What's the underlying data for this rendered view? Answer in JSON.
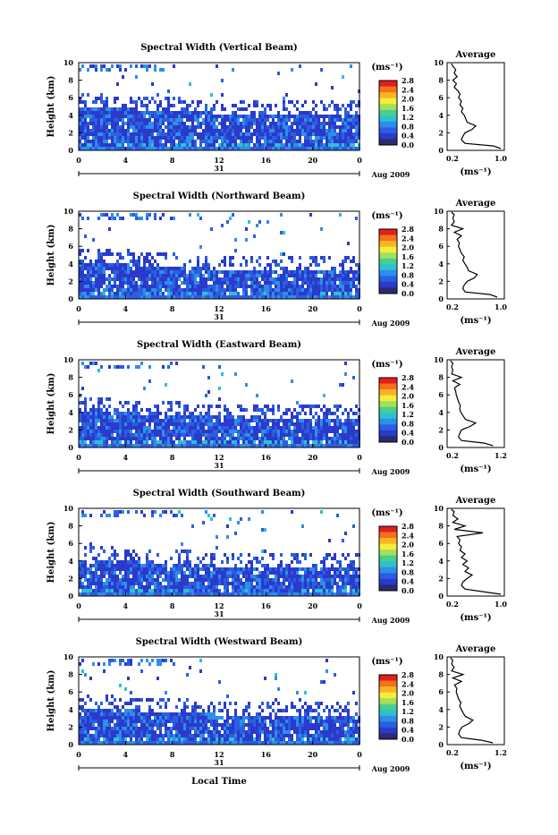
{
  "colorbar": {
    "unit": "(ms⁻¹)",
    "ticks": [
      "2.8",
      "2.4",
      "2.0",
      "1.6",
      "1.2",
      "0.8",
      "0.4",
      "0.0"
    ],
    "colors": [
      "#e41e1e",
      "#f5711a",
      "#fbb326",
      "#f4ee3a",
      "#a4e05a",
      "#46d08c",
      "#2fc0d0",
      "#2e8ee8",
      "#2b5ee0",
      "#2a3acb",
      "#2b2b6e"
    ]
  },
  "shared": {
    "x_ticks": [
      "0",
      "4",
      "8",
      "12",
      "16",
      "20",
      "0"
    ],
    "day_label": "31",
    "date_label": "Aug 2009",
    "y_ticks": [
      "0",
      "2",
      "4",
      "6",
      "8",
      "10"
    ],
    "ylabel": "Height (km)",
    "xlabel": "Local Time",
    "avg_title": "Average",
    "avg_unit": "(ms⁻¹)"
  },
  "chart_data": [
    {
      "type": "heatmap",
      "title": "Spectral Width (Vertical Beam)",
      "x_range": [
        0,
        24
      ],
      "y_range": [
        0,
        10
      ],
      "xlabel": "",
      "ylabel": "Height (km)",
      "profile": {
        "title": "Average",
        "x_ticks": [
          "0.2",
          "1.0"
        ],
        "xlim": [
          0.2,
          1.0
        ],
        "ylim": [
          0,
          10
        ],
        "heights": [
          0.2,
          0.5,
          0.8,
          1.2,
          1.6,
          2.0,
          2.4,
          2.8,
          3.2,
          3.6,
          4.0,
          4.4,
          4.8,
          5.2,
          5.6,
          6.0,
          6.4,
          6.8,
          7.2,
          7.6,
          8.0,
          8.4,
          8.8,
          9.2,
          9.6,
          9.9
        ],
        "values": [
          0.95,
          0.85,
          0.45,
          0.4,
          0.42,
          0.45,
          0.55,
          0.6,
          0.48,
          0.46,
          0.44,
          0.4,
          0.42,
          0.38,
          0.4,
          0.36,
          0.38,
          0.35,
          0.3,
          0.33,
          0.28,
          0.34,
          0.3,
          0.32,
          0.28,
          0.26
        ]
      }
    },
    {
      "type": "heatmap",
      "title": "Spectral Width (Northward Beam)",
      "x_range": [
        0,
        24
      ],
      "y_range": [
        0,
        10
      ],
      "xlabel": "",
      "ylabel": "Height (km)",
      "profile": {
        "title": "Average",
        "x_ticks": [
          "0.2",
          "1.0"
        ],
        "xlim": [
          0.2,
          1.0
        ],
        "ylim": [
          0,
          10
        ],
        "heights": [
          0.2,
          0.5,
          0.8,
          1.2,
          1.6,
          2.0,
          2.4,
          2.8,
          3.2,
          3.6,
          4.0,
          4.4,
          4.8,
          5.2,
          5.6,
          6.0,
          6.4,
          6.8,
          7.2,
          7.6,
          8.0,
          8.4,
          8.8,
          9.2,
          9.6,
          9.9
        ],
        "values": [
          0.9,
          0.8,
          0.45,
          0.42,
          0.44,
          0.48,
          0.58,
          0.62,
          0.5,
          0.48,
          0.45,
          0.42,
          0.44,
          0.4,
          0.38,
          0.36,
          0.37,
          0.34,
          0.4,
          0.3,
          0.42,
          0.26,
          0.3,
          0.28,
          0.3,
          0.26
        ]
      }
    },
    {
      "type": "heatmap",
      "title": "Spectral Width (Eastward Beam)",
      "x_range": [
        0,
        24
      ],
      "y_range": [
        0,
        10
      ],
      "xlabel": "",
      "ylabel": "Height (km)",
      "profile": {
        "title": "Average",
        "x_ticks": [
          "0.2",
          "1.2"
        ],
        "xlim": [
          0.2,
          1.2
        ],
        "ylim": [
          0,
          10
        ],
        "heights": [
          0.2,
          0.5,
          0.8,
          1.2,
          1.6,
          2.0,
          2.4,
          2.8,
          3.2,
          3.6,
          4.0,
          4.4,
          4.8,
          5.2,
          5.6,
          6.0,
          6.4,
          6.8,
          7.2,
          7.6,
          8.0,
          8.4,
          8.8,
          9.2,
          9.6,
          9.9
        ],
        "values": [
          1.0,
          0.85,
          0.45,
          0.4,
          0.42,
          0.45,
          0.6,
          0.7,
          0.52,
          0.48,
          0.44,
          0.42,
          0.43,
          0.4,
          0.38,
          0.36,
          0.35,
          0.33,
          0.42,
          0.3,
          0.45,
          0.28,
          0.3,
          0.28,
          0.3,
          0.26
        ]
      }
    },
    {
      "type": "heatmap",
      "title": "Spectral Width (Southward Beam)",
      "x_range": [
        0,
        24
      ],
      "y_range": [
        0,
        10
      ],
      "xlabel": "",
      "ylabel": "Height (km)",
      "profile": {
        "title": "Average",
        "x_ticks": [
          "0.2",
          "1.0"
        ],
        "xlim": [
          0.2,
          1.0
        ],
        "ylim": [
          0,
          10
        ],
        "heights": [
          0.2,
          0.5,
          0.8,
          1.2,
          1.6,
          2.0,
          2.4,
          2.8,
          3.2,
          3.6,
          4.0,
          4.4,
          4.8,
          5.2,
          5.6,
          6.0,
          6.4,
          6.8,
          7.2,
          7.6,
          8.0,
          8.4,
          8.8,
          9.2,
          9.6,
          9.9
        ],
        "values": [
          0.95,
          0.7,
          0.45,
          0.4,
          0.42,
          0.48,
          0.55,
          0.45,
          0.5,
          0.42,
          0.48,
          0.4,
          0.45,
          0.38,
          0.4,
          0.36,
          0.38,
          0.34,
          0.7,
          0.3,
          0.45,
          0.28,
          0.35,
          0.28,
          0.3,
          0.26
        ]
      }
    },
    {
      "type": "heatmap",
      "title": "Spectral Width (Westward Beam)",
      "x_range": [
        0,
        24
      ],
      "y_range": [
        0,
        10
      ],
      "xlabel": "Local Time",
      "ylabel": "Height (km)",
      "profile": {
        "title": "Average",
        "x_ticks": [
          "0.2",
          "1.2"
        ],
        "xlim": [
          0.2,
          1.2
        ],
        "ylim": [
          0,
          10
        ],
        "heights": [
          0.2,
          0.5,
          0.8,
          1.2,
          1.6,
          2.0,
          2.4,
          2.8,
          3.2,
          3.6,
          4.0,
          4.4,
          4.8,
          5.2,
          5.6,
          6.0,
          6.4,
          6.8,
          7.2,
          7.6,
          8.0,
          8.4,
          8.8,
          9.2,
          9.6,
          9.9
        ],
        "values": [
          1.0,
          0.8,
          0.45,
          0.4,
          0.42,
          0.46,
          0.58,
          0.65,
          0.52,
          0.48,
          0.45,
          0.42,
          0.44,
          0.4,
          0.38,
          0.36,
          0.37,
          0.33,
          0.45,
          0.3,
          0.48,
          0.28,
          0.32,
          0.28,
          0.3,
          0.26
        ]
      }
    }
  ]
}
